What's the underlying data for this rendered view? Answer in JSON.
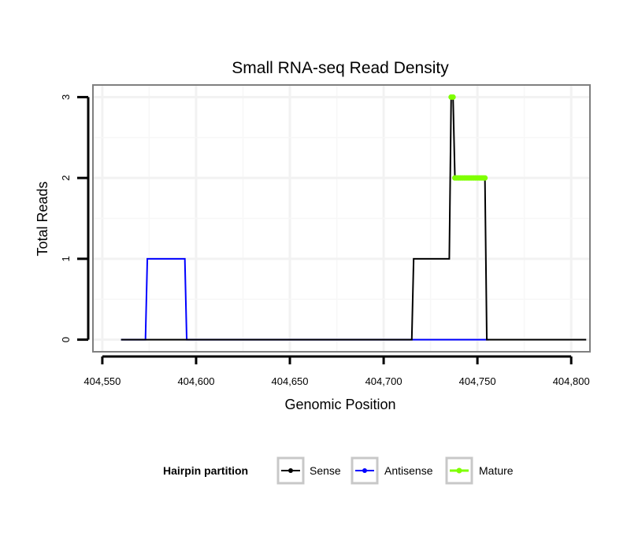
{
  "chart_data": {
    "type": "line",
    "title": "Small RNA-seq Read Density",
    "xlabel": "Genomic Position",
    "ylabel": "Total Reads",
    "xlim": [
      404545,
      404810
    ],
    "ylim": [
      -0.15,
      3.15
    ],
    "x_ticks": [
      404550,
      404600,
      404650,
      404700,
      404750,
      404800
    ],
    "x_tick_labels": [
      "404,550",
      "404,600",
      "404,650",
      "404,700",
      "404,750",
      "404,800"
    ],
    "y_ticks": [
      0,
      1,
      2,
      3
    ],
    "y_tick_labels": [
      "0",
      "1",
      "2",
      "3"
    ],
    "grid": true,
    "legend": {
      "title": "Hairpin partition",
      "position": "bottom"
    },
    "series": [
      {
        "name": "Antisense",
        "color": "#0000ff",
        "x": [
          404560,
          404573,
          404574,
          404594,
          404595,
          404755,
          404756
        ],
        "y": [
          0,
          0,
          1,
          1,
          0,
          0,
          0
        ]
      },
      {
        "name": "Sense",
        "color": "#000000",
        "x": [
          404560,
          404715,
          404716,
          404735,
          404736,
          404737,
          404738,
          404754,
          404755,
          404808
        ],
        "y": [
          0,
          0,
          1,
          1,
          3,
          3,
          2,
          2,
          0,
          0
        ]
      },
      {
        "name": "Mature",
        "color": "#7fff00",
        "x": [
          404736,
          404737,
          404738,
          404739,
          404740,
          404741,
          404742,
          404743,
          404744,
          404745,
          404746,
          404747,
          404748,
          404749,
          404750,
          404751,
          404752,
          404753,
          404754
        ],
        "y": [
          3,
          3,
          2,
          2,
          2,
          2,
          2,
          2,
          2,
          2,
          2,
          2,
          2,
          2,
          2,
          2,
          2,
          2,
          2
        ],
        "segments": [
          [
            0,
            1
          ],
          [
            2,
            18
          ]
        ]
      }
    ],
    "legend_entries": [
      "Sense",
      "Antisense",
      "Mature"
    ],
    "legend_colors": [
      "#000000",
      "#0000ff",
      "#7fff00"
    ]
  }
}
